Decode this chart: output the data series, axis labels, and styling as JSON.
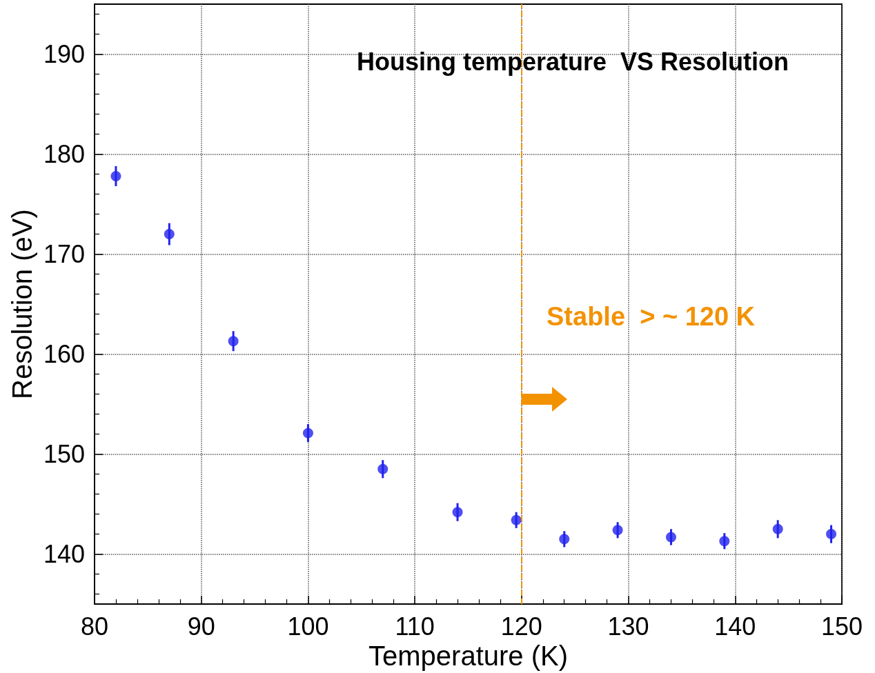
{
  "chart_data": {
    "type": "scatter",
    "title": "Housing temperature  VS Resolution",
    "xlabel": "Temperature (K)",
    "ylabel": "Resolution (eV)",
    "x": [
      82,
      87,
      93,
      100,
      107,
      114,
      119.5,
      124,
      129,
      134,
      139,
      144,
      149
    ],
    "series": [
      {
        "color": "#2222ee",
        "values": [
          177.8,
          172.0,
          161.3,
          152.1,
          148.5,
          144.2,
          143.4,
          141.5,
          142.4,
          141.7,
          141.3,
          142.5,
          142.0
        ],
        "errors": [
          1,
          1.1,
          1,
          0.9,
          0.9,
          0.9,
          0.8,
          0.8,
          0.8,
          0.8,
          0.8,
          0.9,
          0.9
        ]
      }
    ],
    "xlim": [
      80,
      150
    ],
    "xticks": [
      80,
      90,
      100,
      110,
      120,
      130,
      140,
      150
    ],
    "ylim": [
      135,
      195
    ],
    "yticks": [
      140,
      150,
      160,
      170,
      180,
      190
    ],
    "ref_lines": [
      {
        "axis": "x",
        "value": 120,
        "color": "#f39200",
        "line_style": "dashed"
      }
    ],
    "annotations": [
      "Stable  > ~ 120 K"
    ],
    "grid": true,
    "marker": "circle"
  }
}
